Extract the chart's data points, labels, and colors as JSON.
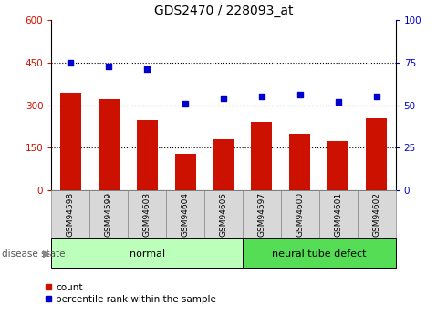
{
  "title": "GDS2470 / 228093_at",
  "samples": [
    "GSM94598",
    "GSM94599",
    "GSM94603",
    "GSM94604",
    "GSM94605",
    "GSM94597",
    "GSM94600",
    "GSM94601",
    "GSM94602"
  ],
  "counts": [
    345,
    320,
    248,
    128,
    178,
    242,
    198,
    172,
    255
  ],
  "percentiles": [
    75,
    73,
    71,
    51,
    54,
    55,
    56,
    52,
    55
  ],
  "groups": [
    {
      "label": "normal",
      "span": [
        0,
        5
      ],
      "color": "#bbffbb"
    },
    {
      "label": "neural tube defect",
      "span": [
        5,
        9
      ],
      "color": "#55dd55"
    }
  ],
  "bar_color": "#cc1100",
  "dot_color": "#0000cc",
  "left_ylim": [
    0,
    600
  ],
  "right_ylim": [
    0,
    100
  ],
  "left_yticks": [
    0,
    150,
    300,
    450,
    600
  ],
  "right_yticks": [
    0,
    25,
    50,
    75,
    100
  ],
  "grid_values": [
    150,
    300,
    450
  ],
  "legend_count_label": "count",
  "legend_pct_label": "percentile rank within the sample",
  "group_label_text": "disease state",
  "tick_area_color": "#d8d8d8",
  "tick_area_edge": "#888888"
}
